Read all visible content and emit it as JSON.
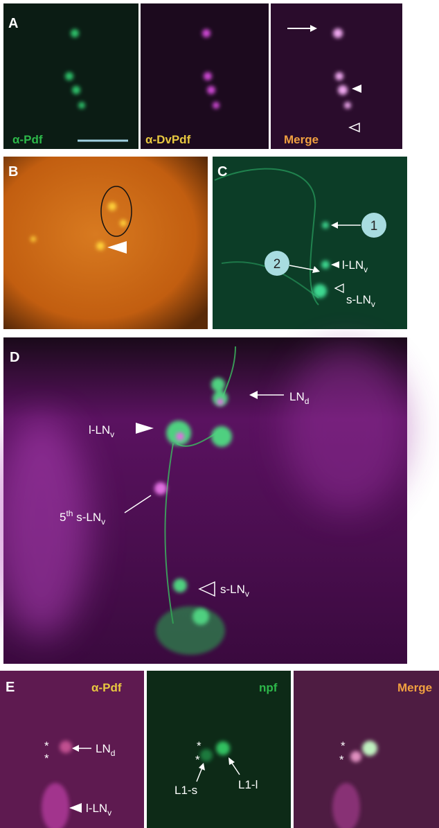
{
  "panel_a": {
    "label": "A",
    "captions": [
      "α-Pdf",
      "α-DvPdf",
      "Merge"
    ]
  },
  "panel_b": {
    "label": "B"
  },
  "panel_c": {
    "label": "C",
    "markers": [
      "1",
      "2"
    ],
    "annotations": [
      {
        "text": "l-LN",
        "sub": "v"
      },
      {
        "text": "s-LN",
        "sub": "v"
      }
    ]
  },
  "panel_d": {
    "label": "D",
    "annotations": [
      {
        "text": "LN",
        "sub": "d"
      },
      {
        "text": "l-LN",
        "sub": "v"
      },
      {
        "pre": "5",
        "sup": "th",
        "text": " s-LN",
        "sub": "v"
      },
      {
        "text": "s-LN",
        "sub": "v"
      }
    ]
  },
  "panel_e": {
    "label": "E",
    "captions": [
      "α-Pdf",
      "npf",
      "Merge"
    ],
    "asterisks": [
      "*",
      "*",
      "*",
      "*",
      "*",
      "*"
    ],
    "annotations": [
      {
        "text": "LN",
        "sub": "d"
      },
      {
        "text": "l-LN",
        "sub": "v"
      },
      {
        "text": "L1-s"
      },
      {
        "text": "L1-l"
      }
    ]
  }
}
